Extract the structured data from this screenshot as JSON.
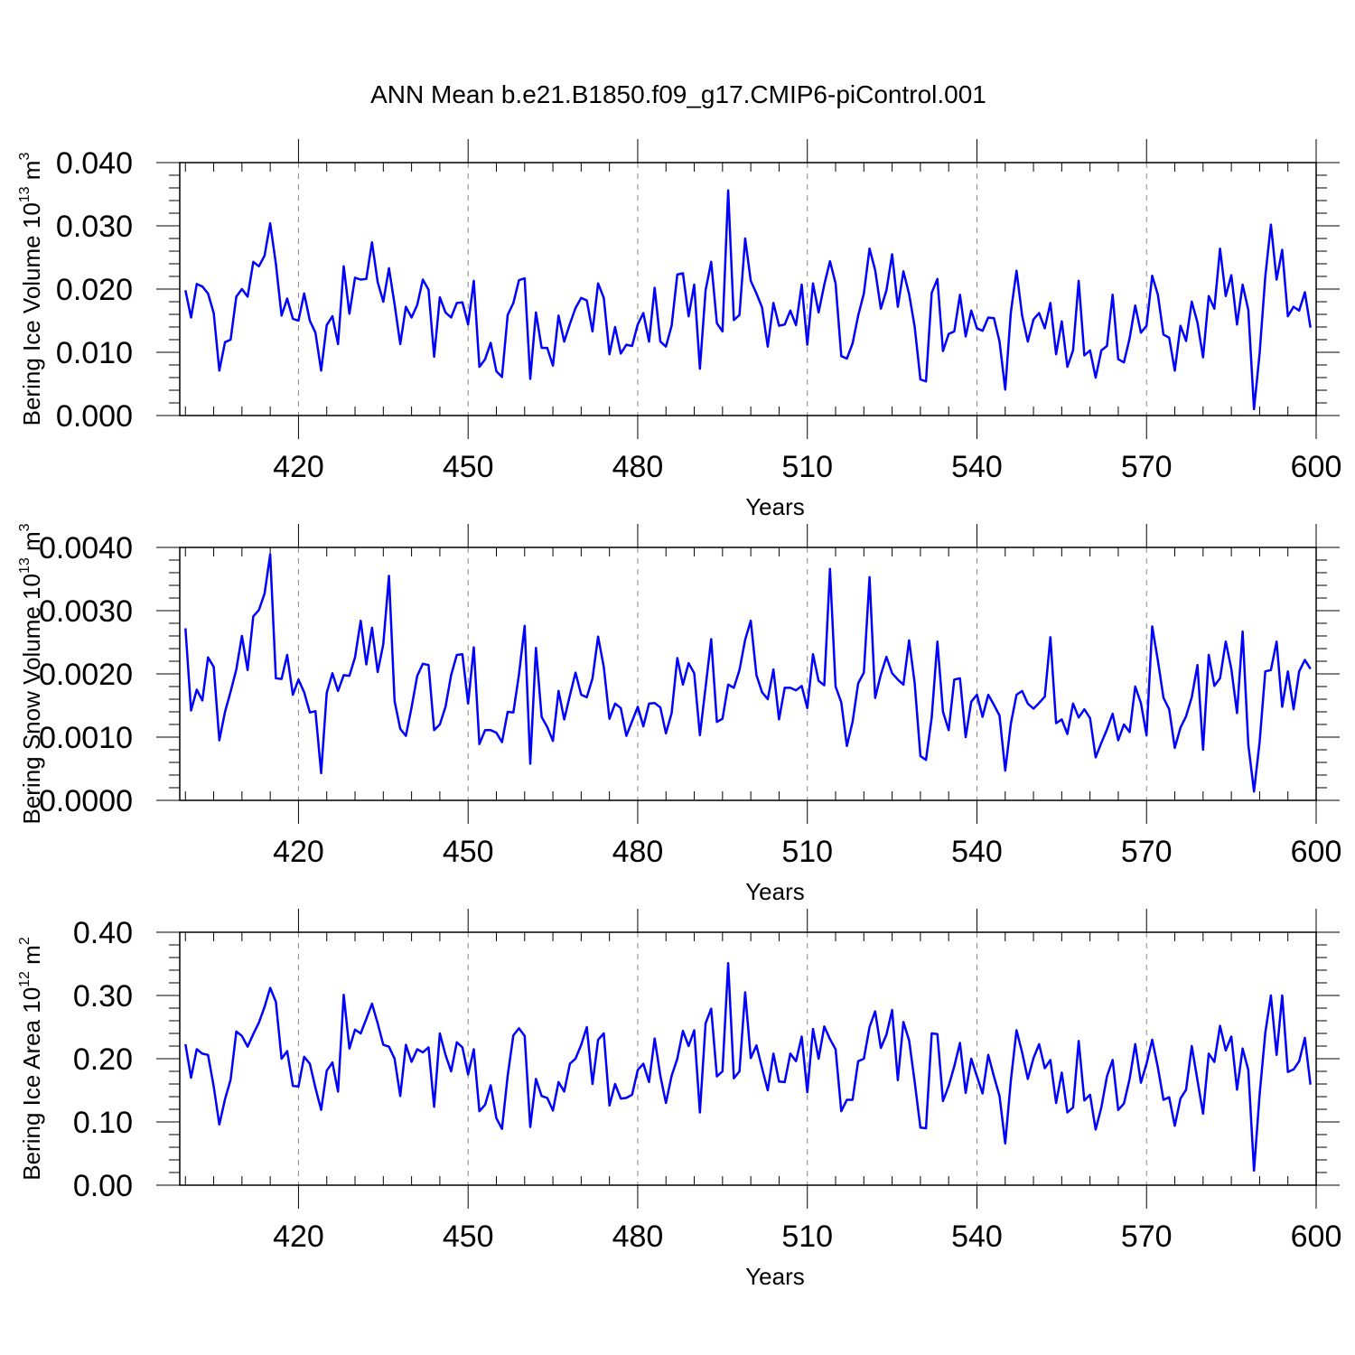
{
  "title": "ANN Mean b.e21.B1850.f09_g17.CMIP6-piControl.001",
  "colors": {
    "series": "#0000ff",
    "axis": "#000000",
    "grid": "#888888"
  },
  "chart_data": [
    {
      "type": "line",
      "ylabel": {
        "text": "Bering Ice Volume 10",
        "exponent": "13",
        "unit": " m",
        "unit_exponent": "3"
      },
      "xlabel": "Years",
      "xlim": [
        399,
        600
      ],
      "ylim": [
        0,
        0.04
      ],
      "xticks": [
        420,
        450,
        480,
        510,
        540,
        570,
        600
      ],
      "xtick_labels": [
        "420",
        "450",
        "480",
        "510",
        "540",
        "570",
        "600"
      ],
      "yticks": [
        0,
        0.01,
        0.02,
        0.03,
        0.04
      ],
      "ytick_labels": [
        "0.000",
        "0.010",
        "0.020",
        "0.030",
        "0.040"
      ],
      "grid": "vertical dashed at major x ticks",
      "series": [
        {
          "x_start": 400,
          "x_step": 1,
          "values": [
            0.0198,
            0.0155,
            0.0208,
            0.0204,
            0.0193,
            0.0162,
            0.0071,
            0.0116,
            0.012,
            0.0188,
            0.02,
            0.0188,
            0.0243,
            0.0236,
            0.0253,
            0.0304,
            0.024,
            0.0158,
            0.0185,
            0.0153,
            0.015,
            0.0193,
            0.015,
            0.0131,
            0.0071,
            0.0143,
            0.0157,
            0.0113,
            0.0236,
            0.0161,
            0.0218,
            0.0215,
            0.0216,
            0.0274,
            0.0211,
            0.018,
            0.0233,
            0.0176,
            0.0113,
            0.0172,
            0.0155,
            0.0175,
            0.0215,
            0.0199,
            0.0093,
            0.0187,
            0.0163,
            0.0155,
            0.0178,
            0.0179,
            0.0144,
            0.0213,
            0.0077,
            0.0089,
            0.0115,
            0.007,
            0.0061,
            0.0159,
            0.0178,
            0.0214,
            0.0217,
            0.0058,
            0.0163,
            0.0107,
            0.0107,
            0.0079,
            0.0158,
            0.0117,
            0.0145,
            0.017,
            0.0186,
            0.0182,
            0.0133,
            0.0209,
            0.0186,
            0.0097,
            0.014,
            0.0098,
            0.0112,
            0.011,
            0.0144,
            0.0162,
            0.0117,
            0.0202,
            0.0117,
            0.0109,
            0.0142,
            0.0223,
            0.0225,
            0.0157,
            0.0207,
            0.0074,
            0.0198,
            0.0243,
            0.0146,
            0.0133,
            0.0356,
            0.0151,
            0.0159,
            0.028,
            0.0213,
            0.0193,
            0.0171,
            0.0109,
            0.0178,
            0.0142,
            0.0144,
            0.0166,
            0.0143,
            0.0207,
            0.0112,
            0.0209,
            0.0163,
            0.0207,
            0.0244,
            0.0209,
            0.0094,
            0.009,
            0.0114,
            0.0158,
            0.0193,
            0.0264,
            0.023,
            0.0169,
            0.0198,
            0.0255,
            0.0172,
            0.0228,
            0.0192,
            0.014,
            0.0057,
            0.0054,
            0.0194,
            0.0216,
            0.0102,
            0.0129,
            0.0133,
            0.0191,
            0.0125,
            0.0166,
            0.0138,
            0.0134,
            0.0155,
            0.0154,
            0.0117,
            0.0041,
            0.0163,
            0.0229,
            0.0158,
            0.0117,
            0.0152,
            0.0162,
            0.0138,
            0.0178,
            0.0097,
            0.0149,
            0.0077,
            0.0103,
            0.0213,
            0.0095,
            0.0103,
            0.006,
            0.0103,
            0.011,
            0.0191,
            0.0089,
            0.0084,
            0.0122,
            0.0174,
            0.0131,
            0.0142,
            0.0221,
            0.0191,
            0.0128,
            0.0123,
            0.0071,
            0.0142,
            0.0118,
            0.018,
            0.0147,
            0.0092,
            0.0189,
            0.0169,
            0.0264,
            0.0189,
            0.0222,
            0.0144,
            0.0207,
            0.0167,
            0.001,
            0.0098,
            0.022,
            0.0302,
            0.0215,
            0.0262,
            0.0157,
            0.0172,
            0.0166,
            0.0195,
            0.0139
          ]
        }
      ]
    },
    {
      "type": "line",
      "ylabel": {
        "text": "Bering Snow Volume 10",
        "exponent": "13",
        "unit": " m",
        "unit_exponent": "3"
      },
      "xlabel": "Years",
      "xlim": [
        399,
        600
      ],
      "ylim": [
        0,
        0.004
      ],
      "xticks": [
        420,
        450,
        480,
        510,
        540,
        570,
        600
      ],
      "xtick_labels": [
        "420",
        "450",
        "480",
        "510",
        "540",
        "570",
        "600"
      ],
      "yticks": [
        0,
        0.001,
        0.002,
        0.003,
        0.004
      ],
      "ytick_labels": [
        "0.0000",
        "0.0010",
        "0.0020",
        "0.0030",
        "0.0040"
      ],
      "grid": "vertical dashed at major x ticks",
      "series": [
        {
          "x_start": 400,
          "x_step": 1,
          "values": [
            0.00272,
            0.00142,
            0.00175,
            0.00158,
            0.00226,
            0.00211,
            0.00095,
            0.0014,
            0.00172,
            0.00207,
            0.0026,
            0.00206,
            0.00291,
            0.00301,
            0.00327,
            0.00389,
            0.00193,
            0.00192,
            0.0023,
            0.00167,
            0.00191,
            0.00171,
            0.00139,
            0.00141,
            0.00043,
            0.0017,
            0.00201,
            0.00173,
            0.00198,
            0.00197,
            0.00226,
            0.00284,
            0.00215,
            0.00273,
            0.00203,
            0.00247,
            0.00355,
            0.00157,
            0.00113,
            0.00102,
            0.00147,
            0.00197,
            0.00216,
            0.00214,
            0.00111,
            0.0012,
            0.00148,
            0.00198,
            0.0023,
            0.00231,
            0.00153,
            0.00242,
            0.00089,
            0.00111,
            0.00111,
            0.00107,
            0.00092,
            0.0014,
            0.00139,
            0.00199,
            0.00276,
            0.00058,
            0.00241,
            0.00132,
            0.00116,
            0.00094,
            0.00173,
            0.00128,
            0.00166,
            0.00202,
            0.00167,
            0.00163,
            0.00193,
            0.00259,
            0.00211,
            0.00129,
            0.00153,
            0.00146,
            0.00102,
            0.00125,
            0.00148,
            0.00117,
            0.00153,
            0.00154,
            0.00147,
            0.00106,
            0.00138,
            0.00225,
            0.00183,
            0.00217,
            0.00201,
            0.00103,
            0.00179,
            0.00255,
            0.00124,
            0.00129,
            0.00183,
            0.00178,
            0.00206,
            0.00254,
            0.00284,
            0.00198,
            0.00171,
            0.0016,
            0.00207,
            0.00128,
            0.00178,
            0.00178,
            0.00174,
            0.00181,
            0.00146,
            0.00231,
            0.00189,
            0.00182,
            0.00366,
            0.0018,
            0.00155,
            0.00086,
            0.00124,
            0.00185,
            0.00202,
            0.00353,
            0.00162,
            0.00199,
            0.00227,
            0.00201,
            0.00191,
            0.00183,
            0.00253,
            0.00185,
            0.0007,
            0.00064,
            0.00131,
            0.00251,
            0.0014,
            0.00111,
            0.00191,
            0.00193,
            0.001,
            0.00156,
            0.00167,
            0.00132,
            0.00167,
            0.00151,
            0.00134,
            0.00047,
            0.00121,
            0.00167,
            0.00173,
            0.00153,
            0.00145,
            0.00154,
            0.00164,
            0.00258,
            0.00122,
            0.00128,
            0.00105,
            0.00153,
            0.00131,
            0.00144,
            0.0013,
            0.00068,
            0.00091,
            0.00112,
            0.00137,
            0.00095,
            0.0012,
            0.00108,
            0.0018,
            0.00154,
            0.00103,
            0.00275,
            0.00221,
            0.00162,
            0.00144,
            0.00083,
            0.00115,
            0.00133,
            0.00163,
            0.00214,
            0.0008,
            0.0023,
            0.00181,
            0.00193,
            0.00251,
            0.00208,
            0.00138,
            0.00267,
            0.00088,
            0.00014,
            0.00092,
            0.00204,
            0.00206,
            0.00251,
            0.00148,
            0.00204,
            0.00144,
            0.00204,
            0.00222,
            0.00208
          ]
        }
      ]
    },
    {
      "type": "line",
      "ylabel": {
        "text": "Bering Ice Area 10",
        "exponent": "12",
        "unit": " m",
        "unit_exponent": "2"
      },
      "xlabel": "Years",
      "xlim": [
        399,
        600
      ],
      "ylim": [
        0,
        0.4
      ],
      "xticks": [
        420,
        450,
        480,
        510,
        540,
        570,
        600
      ],
      "xtick_labels": [
        "420",
        "450",
        "480",
        "510",
        "540",
        "570",
        "600"
      ],
      "yticks": [
        0,
        0.1,
        0.2,
        0.3,
        0.4
      ],
      "ytick_labels": [
        "0.00",
        "0.10",
        "0.20",
        "0.30",
        "0.40"
      ],
      "grid": "vertical dashed at major x ticks",
      "series": [
        {
          "x_start": 400,
          "x_step": 1,
          "values": [
            0.223,
            0.17,
            0.215,
            0.208,
            0.206,
            0.156,
            0.096,
            0.136,
            0.167,
            0.243,
            0.236,
            0.219,
            0.239,
            0.257,
            0.282,
            0.312,
            0.29,
            0.2,
            0.212,
            0.157,
            0.156,
            0.203,
            0.192,
            0.154,
            0.119,
            0.181,
            0.194,
            0.148,
            0.301,
            0.216,
            0.246,
            0.24,
            0.263,
            0.287,
            0.256,
            0.222,
            0.219,
            0.2,
            0.141,
            0.222,
            0.195,
            0.215,
            0.21,
            0.218,
            0.124,
            0.24,
            0.206,
            0.18,
            0.226,
            0.218,
            0.175,
            0.215,
            0.117,
            0.127,
            0.158,
            0.106,
            0.089,
            0.173,
            0.237,
            0.248,
            0.236,
            0.092,
            0.168,
            0.141,
            0.138,
            0.118,
            0.163,
            0.148,
            0.192,
            0.2,
            0.222,
            0.25,
            0.16,
            0.23,
            0.24,
            0.126,
            0.16,
            0.137,
            0.138,
            0.143,
            0.182,
            0.192,
            0.163,
            0.232,
            0.173,
            0.13,
            0.173,
            0.2,
            0.244,
            0.22,
            0.245,
            0.115,
            0.256,
            0.279,
            0.172,
            0.18,
            0.351,
            0.169,
            0.18,
            0.305,
            0.201,
            0.221,
            0.185,
            0.15,
            0.208,
            0.164,
            0.163,
            0.208,
            0.196,
            0.235,
            0.147,
            0.247,
            0.2,
            0.251,
            0.231,
            0.215,
            0.117,
            0.135,
            0.135,
            0.196,
            0.2,
            0.25,
            0.275,
            0.217,
            0.238,
            0.277,
            0.166,
            0.258,
            0.229,
            0.163,
            0.091,
            0.09,
            0.24,
            0.239,
            0.133,
            0.157,
            0.188,
            0.225,
            0.146,
            0.2,
            0.172,
            0.145,
            0.206,
            0.172,
            0.141,
            0.066,
            0.165,
            0.245,
            0.21,
            0.168,
            0.201,
            0.223,
            0.185,
            0.198,
            0.13,
            0.178,
            0.115,
            0.123,
            0.228,
            0.134,
            0.143,
            0.088,
            0.123,
            0.172,
            0.198,
            0.119,
            0.129,
            0.168,
            0.223,
            0.162,
            0.192,
            0.23,
            0.186,
            0.135,
            0.139,
            0.094,
            0.137,
            0.151,
            0.22,
            0.166,
            0.113,
            0.208,
            0.195,
            0.252,
            0.213,
            0.235,
            0.151,
            0.216,
            0.182,
            0.023,
            0.143,
            0.241,
            0.3,
            0.206,
            0.3,
            0.179,
            0.183,
            0.196,
            0.233,
            0.159
          ]
        }
      ]
    }
  ]
}
